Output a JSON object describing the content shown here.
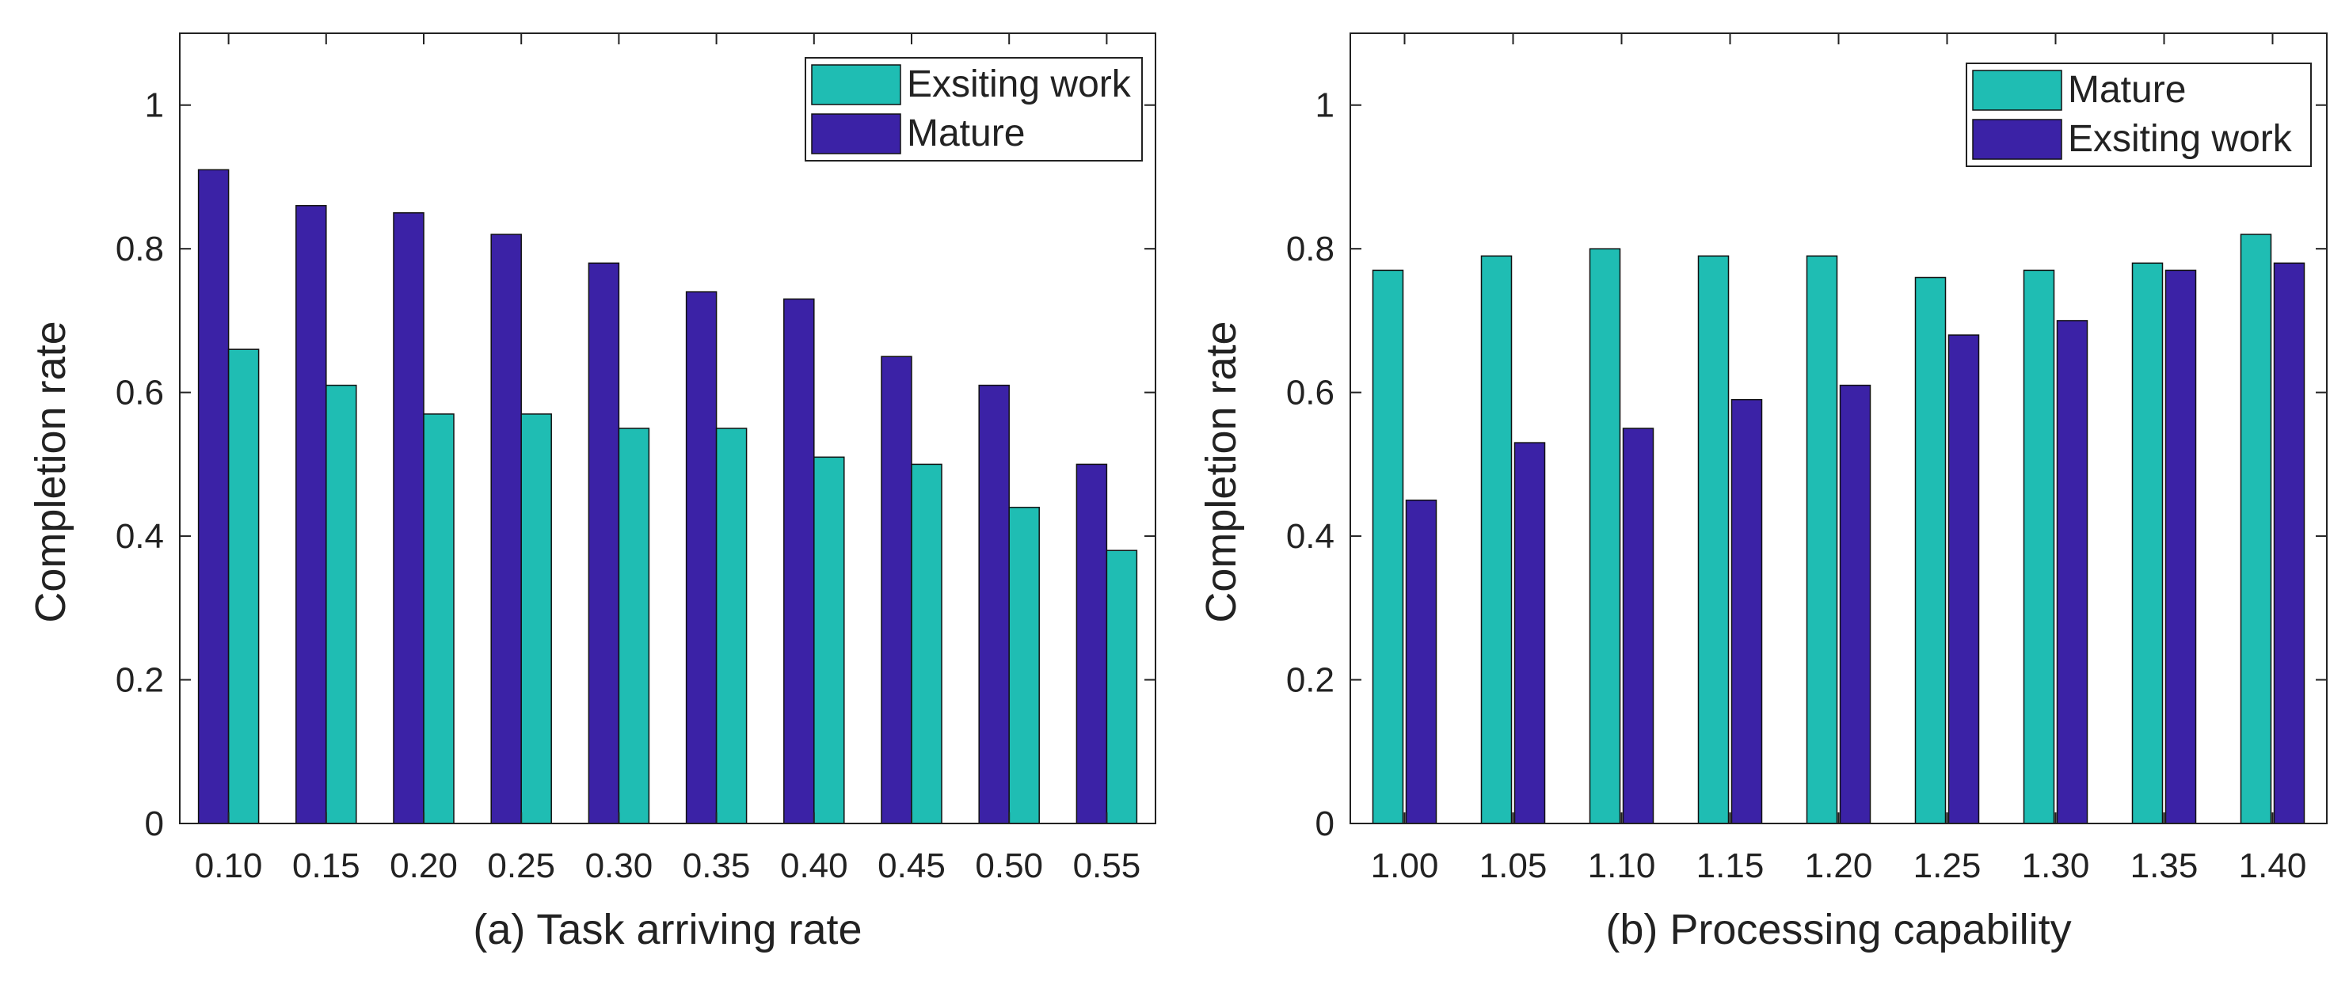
{
  "colors": {
    "teal": "#1fbdb3",
    "purple": "#3b22a6",
    "axis": "#222222",
    "background": "#ffffff"
  },
  "chart_data": [
    {
      "type": "bar",
      "title": "",
      "xlabel": "(a) Task arriving rate",
      "ylabel": "Completion rate",
      "ylim": [
        0,
        1.1
      ],
      "yticks": [
        "0",
        "0.2",
        "0.4",
        "0.6",
        "0.8",
        "1"
      ],
      "categories": [
        "0.10",
        "0.15",
        "0.20",
        "0.25",
        "0.30",
        "0.35",
        "0.40",
        "0.45",
        "0.50",
        "0.55"
      ],
      "legend_position": "top-right",
      "series": [
        {
          "name": "Exsiting work",
          "color": "#1fbdb3",
          "bar_order": 1,
          "values": [
            0.66,
            0.61,
            0.57,
            0.57,
            0.55,
            0.55,
            0.51,
            0.5,
            0.44,
            0.38
          ]
        },
        {
          "name": "Mature",
          "color": "#3b22a6",
          "bar_order": 0,
          "values": [
            0.91,
            0.86,
            0.85,
            0.82,
            0.78,
            0.74,
            0.73,
            0.65,
            0.61,
            0.5
          ]
        }
      ]
    },
    {
      "type": "bar",
      "title": "",
      "xlabel": "(b) Processing capability",
      "ylabel": "Completion rate",
      "ylim": [
        0,
        1.1
      ],
      "yticks": [
        "0",
        "0.2",
        "0.4",
        "0.6",
        "0.8",
        "1"
      ],
      "categories": [
        "1.00",
        "1.05",
        "1.10",
        "1.15",
        "1.20",
        "1.25",
        "1.30",
        "1.35",
        "1.40"
      ],
      "legend_position": "top-right",
      "series": [
        {
          "name": "Mature",
          "color": "#1fbdb3",
          "bar_order": 0,
          "values": [
            0.77,
            0.79,
            0.8,
            0.79,
            0.79,
            0.76,
            0.77,
            0.78,
            0.82
          ]
        },
        {
          "name": "Exsiting work",
          "color": "#3b22a6",
          "bar_order": 1,
          "values": [
            0.45,
            0.53,
            0.55,
            0.59,
            0.61,
            0.68,
            0.7,
            0.77,
            0.78
          ]
        }
      ]
    }
  ]
}
